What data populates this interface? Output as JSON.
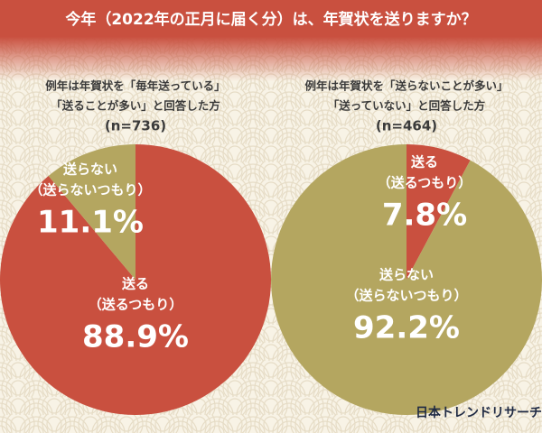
{
  "title": "今年（2022年の正月に届く分）は、年賀状を送りますか？",
  "source": "日本トレンドリサーチ",
  "chart_data": [
    {
      "type": "pie",
      "subtitle": [
        "例年は年賀状を「毎年送っている」",
        "「送ることが多い」と回答した方"
      ],
      "sample": "(n=736)",
      "categories": [
        "送る",
        "送らない"
      ],
      "category_notes": [
        "（送るつもり）",
        "（送らないつもり）"
      ],
      "values": [
        88.9,
        11.1
      ],
      "value_labels": [
        "88.9%",
        "11.1%"
      ],
      "colors": [
        "#c9503f",
        "#b4a660"
      ]
    },
    {
      "type": "pie",
      "subtitle": [
        "例年は年賀状を「送らないことが多い」",
        "「送っていない」と回答した方"
      ],
      "sample": "(n=464)",
      "categories": [
        "送る",
        "送らない"
      ],
      "category_notes": [
        "（送るつもり）",
        "（送らないつもり）"
      ],
      "values": [
        7.8,
        92.2
      ],
      "value_labels": [
        "7.8%",
        "92.2%"
      ],
      "colors": [
        "#c9503f",
        "#b4a660"
      ]
    }
  ]
}
